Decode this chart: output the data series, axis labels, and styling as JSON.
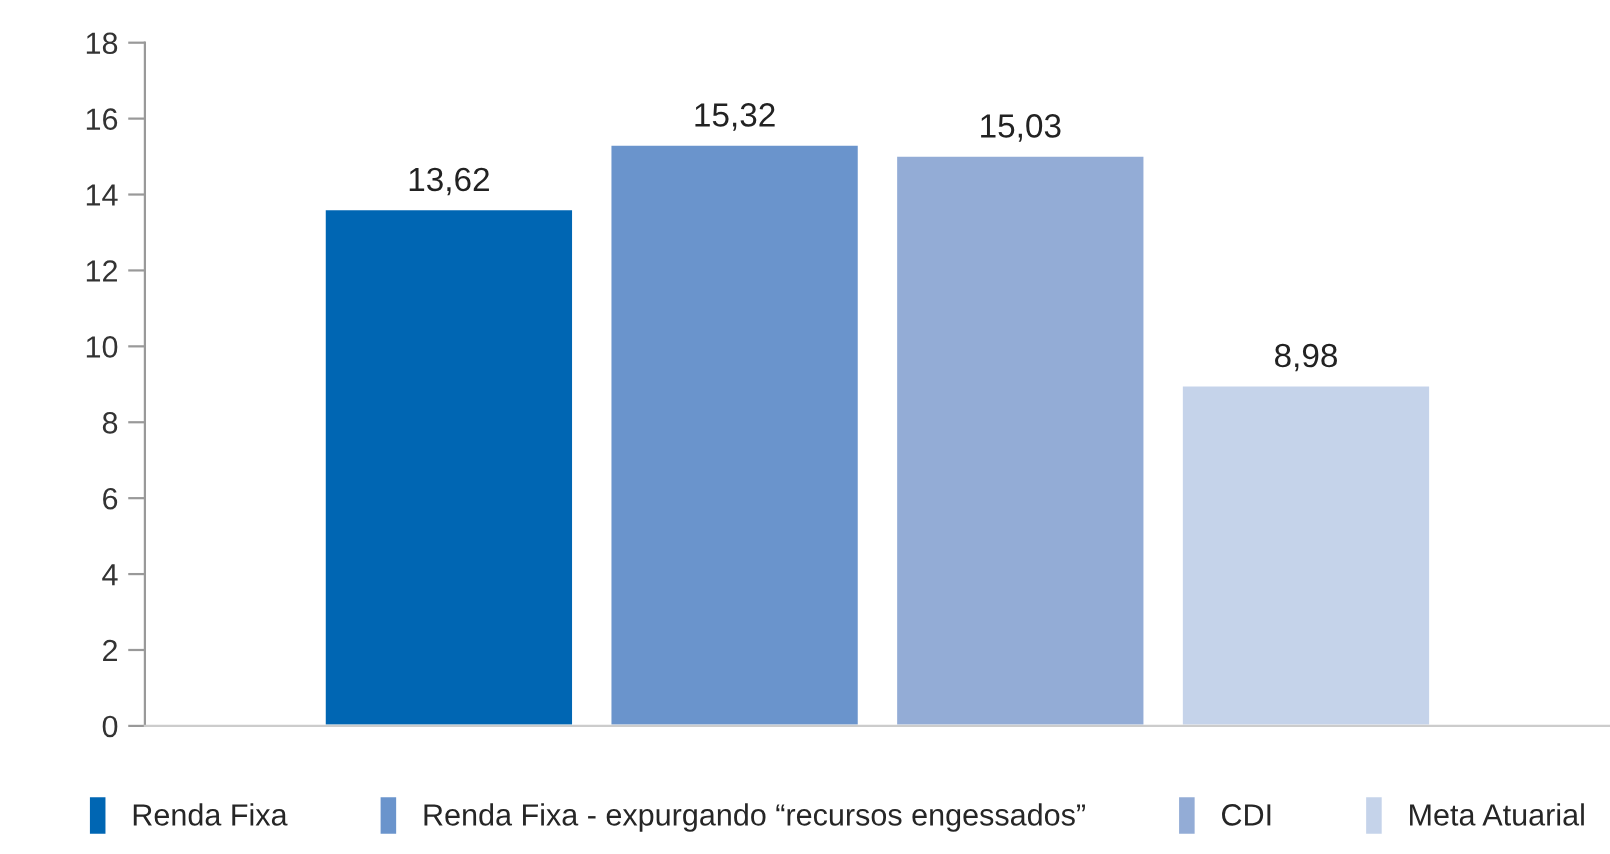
{
  "chart_data": {
    "type": "bar",
    "categories": [
      null
    ],
    "ylim": [
      0,
      18
    ],
    "yticks": [
      0,
      2,
      4,
      6,
      8,
      10,
      12,
      14,
      16,
      18
    ],
    "grid": false,
    "legend": "bottom",
    "series": [
      {
        "name": "Renda Fixa",
        "color": "#0066b3",
        "values": [
          13.62
        ],
        "value_labels": [
          "13,62"
        ]
      },
      {
        "name": "Renda Fixa - expurgando “recursos engessados”",
        "color": "#6a94cc",
        "values": [
          15.32
        ],
        "value_labels": [
          "15,32"
        ]
      },
      {
        "name": "CDI",
        "color": "#93acd6",
        "values": [
          15.03
        ],
        "value_labels": [
          "15,03"
        ]
      },
      {
        "name": "Meta Atuarial",
        "color": "#c5d3ea",
        "values": [
          8.98
        ],
        "value_labels": [
          "8,98"
        ]
      }
    ]
  }
}
